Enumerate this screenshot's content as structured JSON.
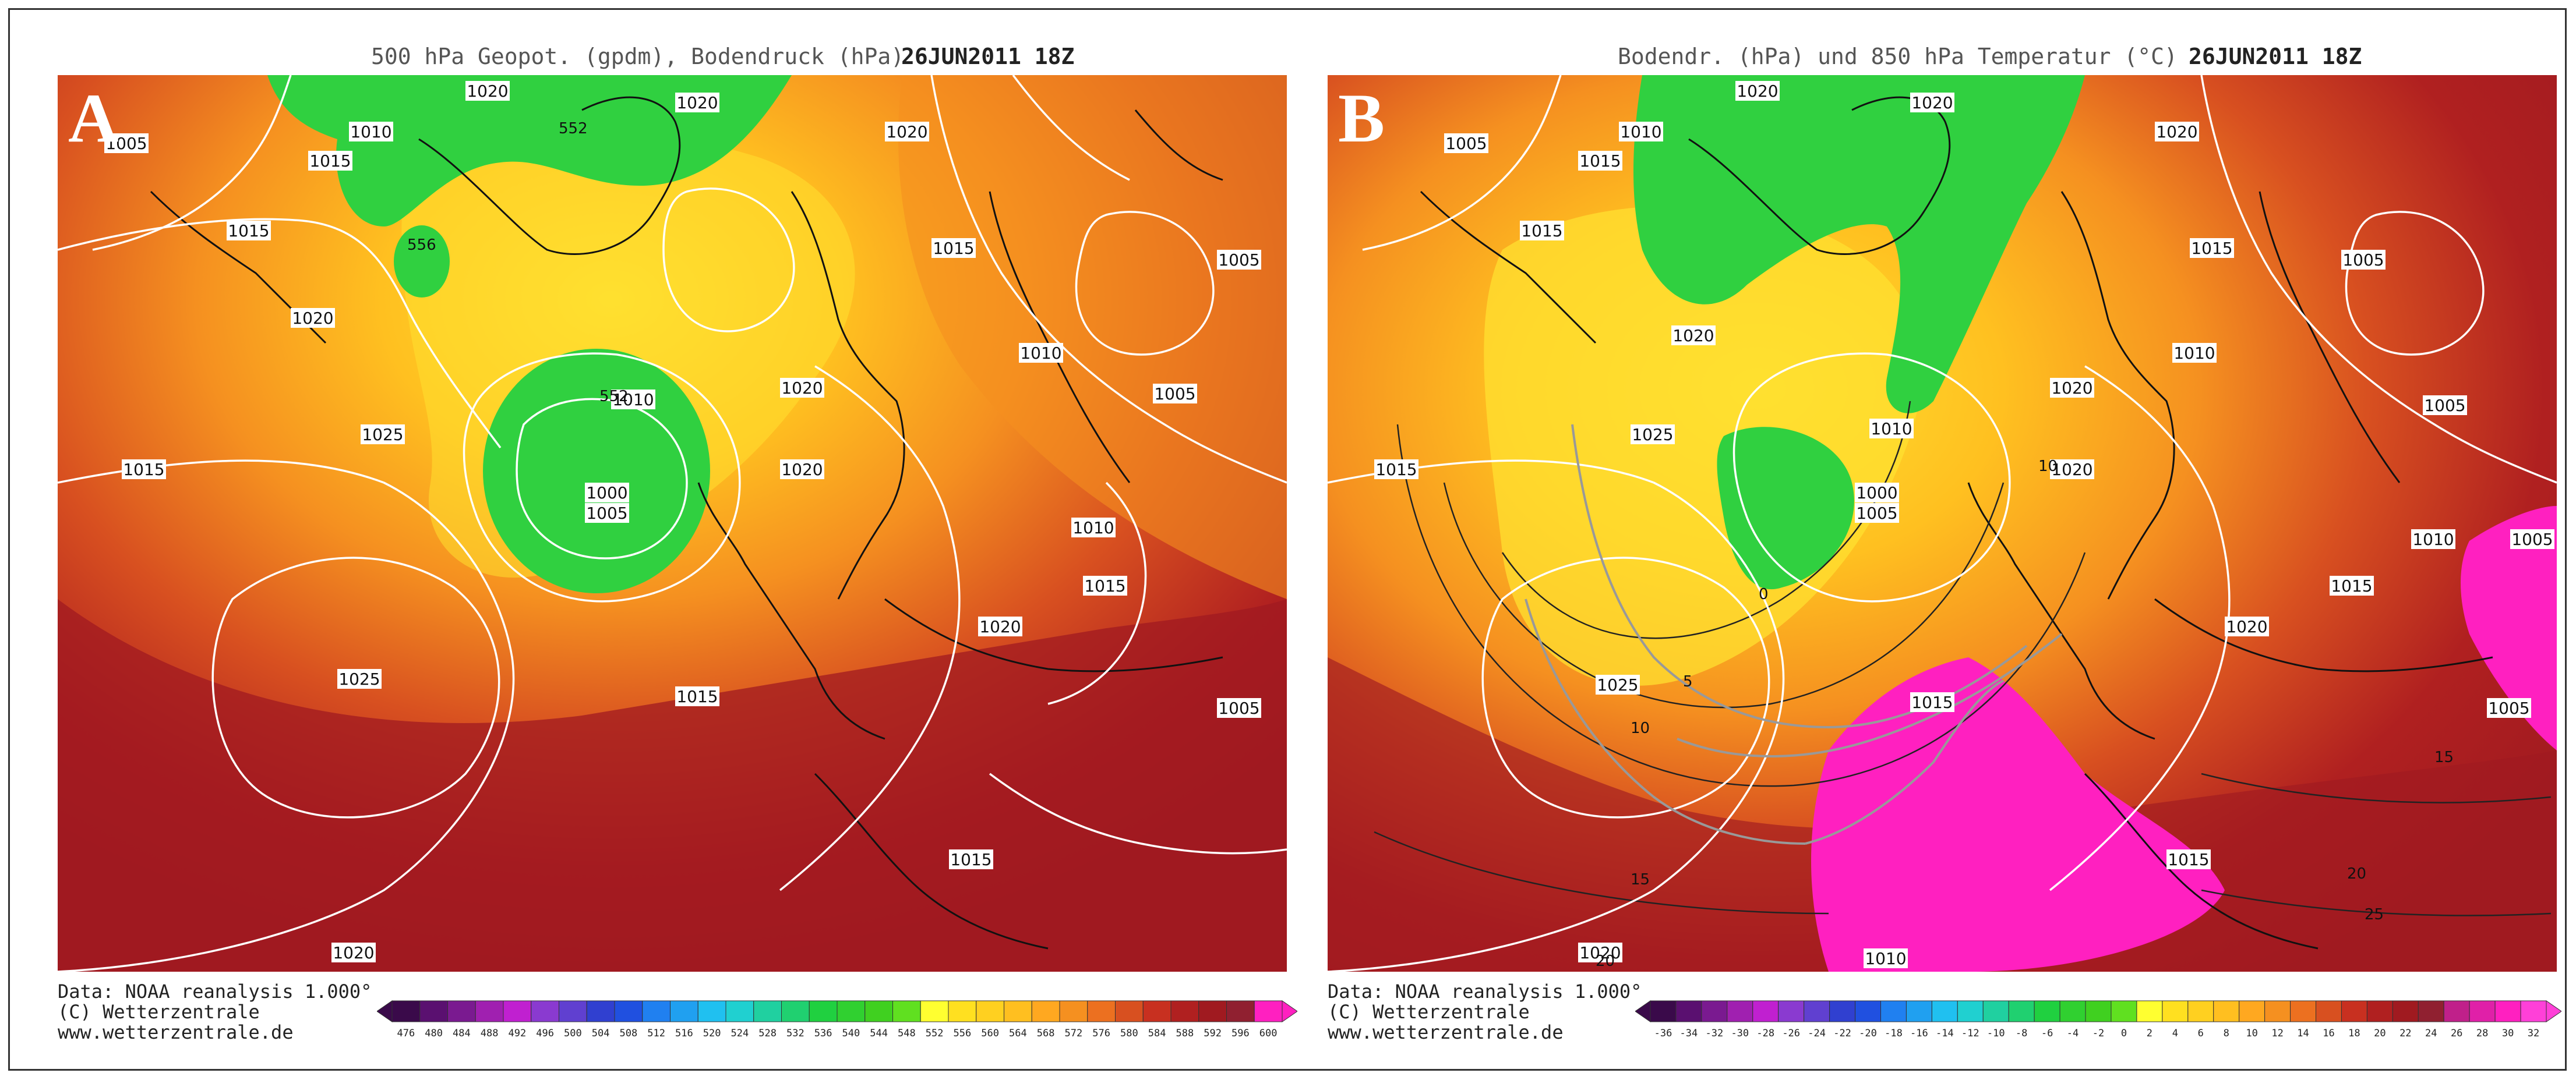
{
  "panels": [
    {
      "letter": "A",
      "title": "500 hPa Geopot. (gpdm), Bodendruck (hPa)",
      "date": "26JUN2011 18Z",
      "credit": [
        "Data: NOAA reanalysis 1.000°",
        "(C) Wetterzentrale",
        "www.wetterzentrale.de"
      ],
      "colorbar_labels": [
        "476",
        "480",
        "484",
        "488",
        "492",
        "496",
        "500",
        "504",
        "508",
        "512",
        "516",
        "520",
        "524",
        "528",
        "532",
        "536",
        "540",
        "544",
        "548",
        "552",
        "556",
        "560",
        "564",
        "568",
        "572",
        "576",
        "580",
        "584",
        "588",
        "592",
        "596",
        "600"
      ],
      "colorbar_colors": [
        "#3a0a4a",
        "#5a1070",
        "#7a1a90",
        "#a020b0",
        "#c020d0",
        "#8a3ad0",
        "#6040d0",
        "#3040d0",
        "#2050e0",
        "#2080f0",
        "#20a0f0",
        "#20c0f0",
        "#20d0d0",
        "#20d0a0",
        "#20d070",
        "#20d040",
        "#30d030",
        "#40d020",
        "#60e020",
        "#ffff30",
        "#ffe020",
        "#ffd020",
        "#ffbf20",
        "#ffa820",
        "#f59020",
        "#ec7020",
        "#d85020",
        "#c83020",
        "#b02020",
        "#a01a20",
        "#902030",
        "#ff20c0"
      ],
      "isobars": [
        {
          "v": "1005"
        },
        {
          "v": "1010"
        },
        {
          "v": "1015"
        },
        {
          "v": "1020"
        },
        {
          "v": "1020"
        },
        {
          "v": "1020"
        },
        {
          "v": "1015"
        },
        {
          "v": "1020"
        },
        {
          "v": "1005"
        },
        {
          "v": "1010"
        },
        {
          "v": "1015"
        },
        {
          "v": "1010"
        },
        {
          "v": "1020"
        },
        {
          "v": "1025"
        },
        {
          "v": "1015"
        },
        {
          "v": "1000"
        },
        {
          "v": "1005"
        },
        {
          "v": "1020"
        },
        {
          "v": "1005"
        },
        {
          "v": "1010"
        },
        {
          "v": "1015"
        },
        {
          "v": "1020"
        },
        {
          "v": "1025"
        },
        {
          "v": "1015"
        },
        {
          "v": "1005"
        },
        {
          "v": "1015"
        },
        {
          "v": "1020"
        },
        {
          "v": "552"
        },
        {
          "v": "556"
        },
        {
          "v": "552"
        }
      ]
    },
    {
      "letter": "B",
      "title": "Bodendr. (hPa) und 850 hPa Temperatur (°C)",
      "date": "26JUN2011 18Z",
      "credit": [
        "Data: NOAA reanalysis 1.000°",
        "(C) Wetterzentrale",
        "www.wetterzentrale.de"
      ],
      "colorbar_labels": [
        "-36",
        "-34",
        "-32",
        "-30",
        "-28",
        "-26",
        "-24",
        "-22",
        "-20",
        "-18",
        "-16",
        "-14",
        "-12",
        "-10",
        "-8",
        "-6",
        "-4",
        "-2",
        "0",
        "2",
        "4",
        "6",
        "8",
        "10",
        "12",
        "14",
        "16",
        "18",
        "20",
        "22",
        "24",
        "26",
        "28",
        "30",
        "32"
      ],
      "colorbar_colors": [
        "#3a0a4a",
        "#5a1070",
        "#7a1a90",
        "#a020b0",
        "#c020d0",
        "#8a3ad0",
        "#6040d0",
        "#3040d0",
        "#2050e0",
        "#2080f0",
        "#20a0f0",
        "#20c0f0",
        "#20d0d0",
        "#20d0a0",
        "#20d070",
        "#20d040",
        "#30d030",
        "#40d020",
        "#60e020",
        "#ffff30",
        "#ffe020",
        "#ffd020",
        "#ffbf20",
        "#ffa820",
        "#f59020",
        "#ec7020",
        "#d85020",
        "#c83020",
        "#b02020",
        "#a01a20",
        "#902030",
        "#c0208a",
        "#e020a8",
        "#ff20c0",
        "#ff40d8"
      ],
      "isobars": [
        {
          "v": "1005"
        },
        {
          "v": "1010"
        },
        {
          "v": "1015"
        },
        {
          "v": "1020"
        },
        {
          "v": "1020"
        },
        {
          "v": "1020"
        },
        {
          "v": "1015"
        },
        {
          "v": "1020"
        },
        {
          "v": "1005"
        },
        {
          "v": "1010"
        },
        {
          "v": "1015"
        },
        {
          "v": "1010"
        },
        {
          "v": "1020"
        },
        {
          "v": "1025"
        },
        {
          "v": "1015"
        },
        {
          "v": "1000"
        },
        {
          "v": "1005"
        },
        {
          "v": "1020"
        },
        {
          "v": "1005"
        },
        {
          "v": "1010"
        },
        {
          "v": "1015"
        },
        {
          "v": "1020"
        },
        {
          "v": "1025"
        },
        {
          "v": "1015"
        },
        {
          "v": "1005"
        },
        {
          "v": "1015"
        },
        {
          "v": "1020"
        },
        {
          "v": "1010"
        },
        {
          "v": "1005"
        }
      ],
      "isotherms": [
        "0",
        "5",
        "10",
        "15",
        "20",
        "25",
        "10",
        "15",
        "20"
      ]
    }
  ]
}
